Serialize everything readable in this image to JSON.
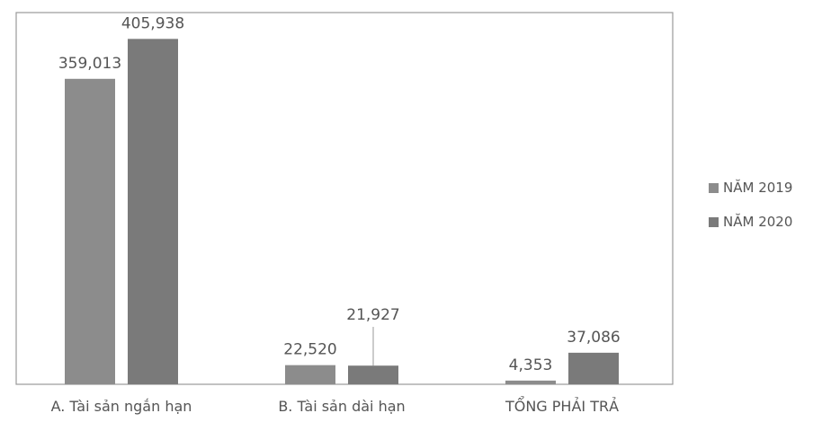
{
  "chart_data": {
    "type": "bar",
    "categories": [
      "A. Tài sản ngắn hạn",
      "B. Tài sản dài hạn",
      "TỔNG PHẢI TRẢ"
    ],
    "series": [
      {
        "name": "NĂM 2019",
        "values": [
          359013,
          22520,
          4353
        ],
        "labels": [
          "359,013",
          "22,520",
          "4,353"
        ],
        "color": "#8c8c8c"
      },
      {
        "name": "NĂM 2020",
        "values": [
          405938,
          21927,
          37086
        ],
        "labels": [
          "405,938",
          "21,927",
          "37,086"
        ],
        "color": "#7a7a7a"
      }
    ],
    "title": "",
    "xlabel": "",
    "ylabel": "",
    "ylim": [
      0,
      420000
    ],
    "grid": false,
    "legend_position": "right"
  }
}
